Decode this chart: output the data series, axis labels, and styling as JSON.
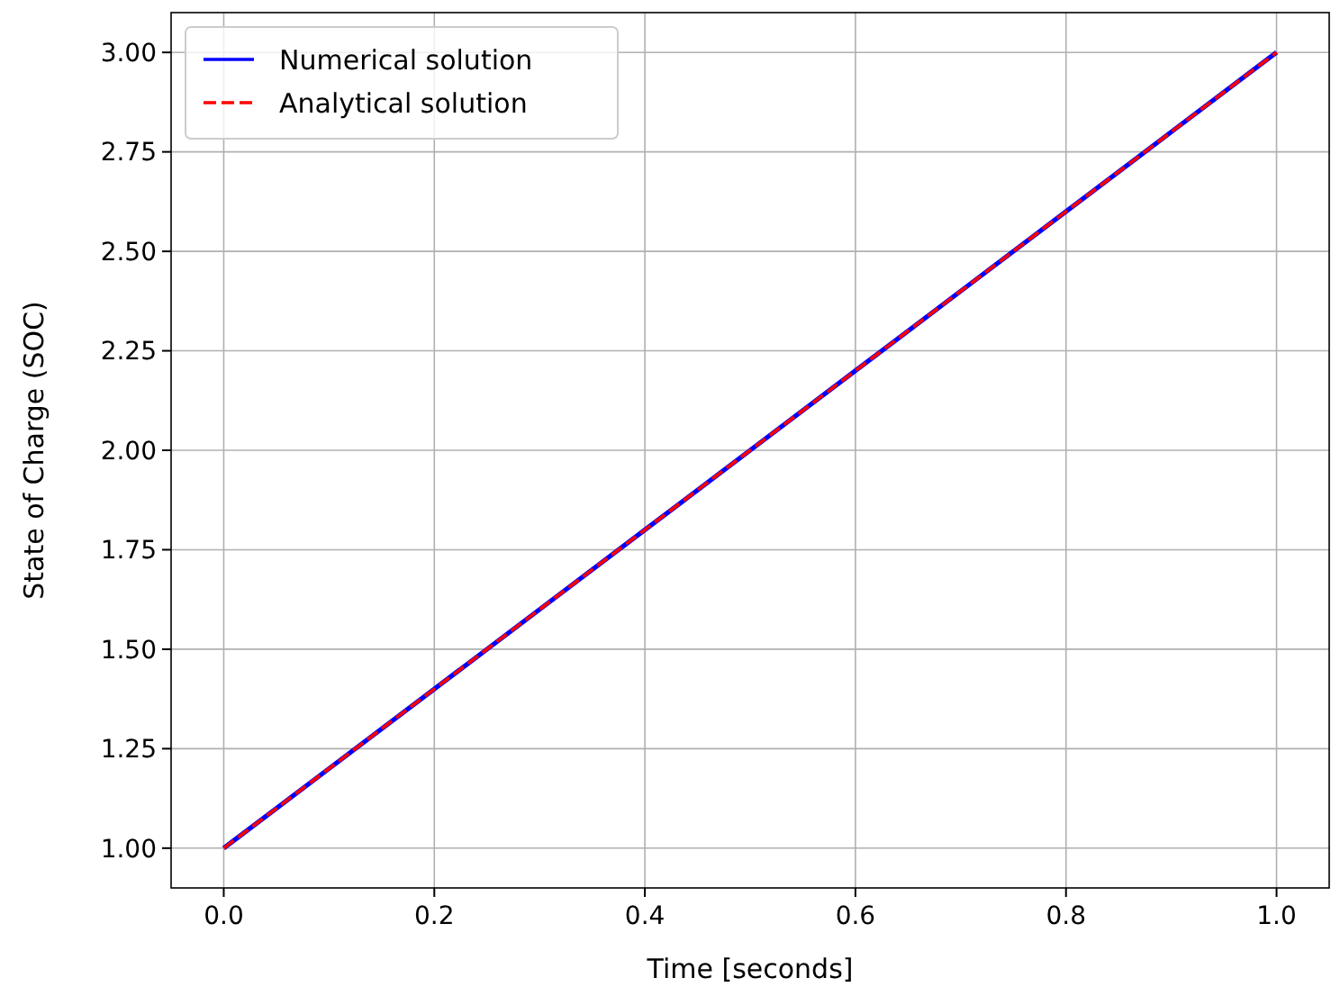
{
  "chart_data": {
    "type": "line",
    "xlabel": "Time [seconds]",
    "ylabel": "State of Charge (SOC)",
    "x": [
      0,
      0.1,
      0.2,
      0.3,
      0.4,
      0.5,
      0.6,
      0.7,
      0.8,
      0.9,
      1.0
    ],
    "series": [
      {
        "name": "Numerical solution",
        "color": "#0000ff",
        "line_style": "solid",
        "values": [
          1.0,
          1.2,
          1.4,
          1.6,
          1.8,
          2.0,
          2.2,
          2.4,
          2.6,
          2.8,
          3.0
        ]
      },
      {
        "name": "Analytical solution",
        "color": "#ff0000",
        "line_style": "dashed",
        "values": [
          1.0,
          1.2,
          1.4,
          1.6,
          1.8,
          2.0,
          2.2,
          2.4,
          2.6,
          2.8,
          3.0
        ]
      }
    ],
    "xlim": [
      -0.05,
      1.05
    ],
    "ylim": [
      0.9,
      3.1
    ],
    "xticks": [
      {
        "value": 0,
        "label": "0.0"
      },
      {
        "value": 0.2,
        "label": "0.2"
      },
      {
        "value": 0.4,
        "label": "0.4"
      },
      {
        "value": 0.6,
        "label": "0.6"
      },
      {
        "value": 0.8,
        "label": "0.8"
      },
      {
        "value": 1,
        "label": "1.0"
      }
    ],
    "yticks": [
      {
        "value": 1,
        "label": "1.00"
      },
      {
        "value": 1.25,
        "label": "1.25"
      },
      {
        "value": 1.5,
        "label": "1.50"
      },
      {
        "value": 1.75,
        "label": "1.75"
      },
      {
        "value": 2,
        "label": "2.00"
      },
      {
        "value": 2.25,
        "label": "2.25"
      },
      {
        "value": 2.5,
        "label": "2.50"
      },
      {
        "value": 2.75,
        "label": "2.75"
      },
      {
        "value": 3,
        "label": "3.00"
      }
    ],
    "grid": true,
    "legend": "top left"
  }
}
